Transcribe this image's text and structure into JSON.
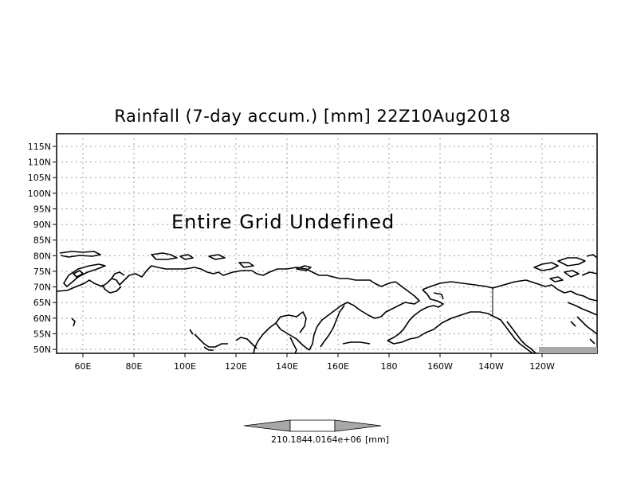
{
  "title": "Rainfall (7-day accum.) [mm] 22Z10Aug2018",
  "message": "Entire Grid Undefined",
  "lat_labels": [
    "115N",
    "110N",
    "105N",
    "100N",
    "95N",
    "90N",
    "85N",
    "80N",
    "75N",
    "70N",
    "65N",
    "60N",
    "55N",
    "50N"
  ],
  "lon_labels": [
    "60E",
    "80E",
    "100E",
    "120E",
    "140E",
    "160E",
    "180",
    "160W",
    "140W",
    "120W"
  ],
  "colorbar": {
    "labels": [
      "210.184",
      "4.0164e+06",
      "[mm]"
    ],
    "fill_colors": [
      "#a8a8a8",
      "#ffffff",
      "#a8a8a8"
    ]
  },
  "colors": {
    "coast": "#000000",
    "grid": "#a0a0a0",
    "frame": "#000000"
  }
}
